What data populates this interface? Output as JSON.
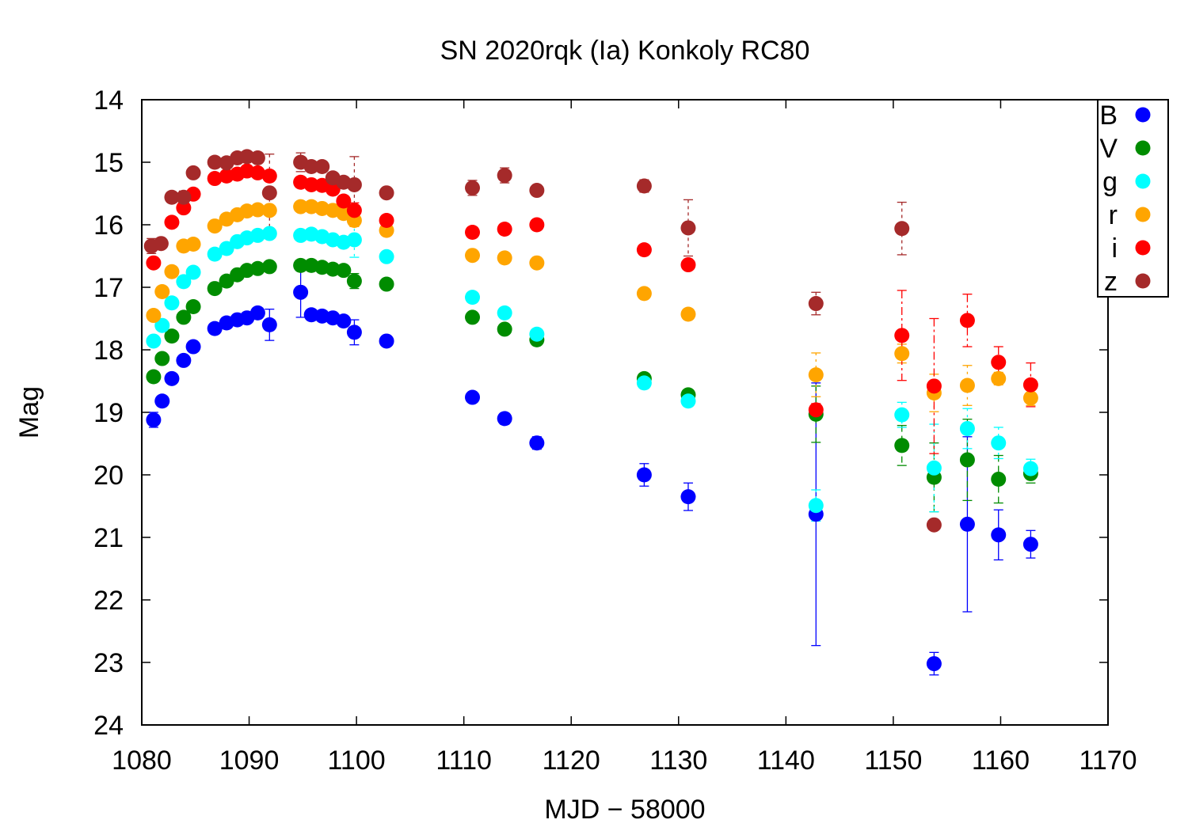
{
  "chart_data": {
    "type": "scatter",
    "title": "SN 2020rqk (Ia) Konkoly RC80",
    "xlabel": "MJD − 58000",
    "ylabel": "Mag",
    "xlim": [
      1080,
      1170
    ],
    "ylim": [
      14,
      24
    ],
    "y_inverted": true,
    "x_ticks": [
      1080,
      1090,
      1100,
      1110,
      1120,
      1130,
      1140,
      1150,
      1160,
      1170
    ],
    "y_ticks": [
      14,
      15,
      16,
      17,
      18,
      19,
      20,
      21,
      22,
      23,
      24
    ],
    "grid": false,
    "legend_position": "top-right",
    "series": [
      {
        "name": "B",
        "color": "#0000ff",
        "points": [
          {
            "x": 1081.1,
            "y": 19.12,
            "err": 0.12
          },
          {
            "x": 1081.9,
            "y": 18.82,
            "err": 0.05
          },
          {
            "x": 1082.8,
            "y": 18.46,
            "err": 0.05
          },
          {
            "x": 1083.9,
            "y": 18.17,
            "err": 0.05
          },
          {
            "x": 1084.8,
            "y": 17.95,
            "err": 0.05
          },
          {
            "x": 1086.8,
            "y": 17.66,
            "err": 0.05
          },
          {
            "x": 1087.9,
            "y": 17.57,
            "err": 0.05
          },
          {
            "x": 1088.9,
            "y": 17.52,
            "err": 0.05
          },
          {
            "x": 1089.8,
            "y": 17.49,
            "err": 0.05
          },
          {
            "x": 1090.8,
            "y": 17.41,
            "err": 0.05
          },
          {
            "x": 1091.9,
            "y": 17.6,
            "err": 0.25
          },
          {
            "x": 1094.8,
            "y": 17.08,
            "err": 0.4
          },
          {
            "x": 1095.8,
            "y": 17.44,
            "err": 0.05
          },
          {
            "x": 1096.8,
            "y": 17.46,
            "err": 0.05
          },
          {
            "x": 1097.8,
            "y": 17.49,
            "err": 0.05
          },
          {
            "x": 1098.8,
            "y": 17.54,
            "err": 0.05
          },
          {
            "x": 1099.8,
            "y": 17.72,
            "err": 0.2
          },
          {
            "x": 1102.8,
            "y": 17.86,
            "err": 0.05
          },
          {
            "x": 1110.8,
            "y": 18.76,
            "err": 0.07
          },
          {
            "x": 1113.8,
            "y": 19.1,
            "err": 0.09
          },
          {
            "x": 1116.8,
            "y": 19.49,
            "err": 0.1
          },
          {
            "x": 1126.8,
            "y": 20.0,
            "err": 0.18
          },
          {
            "x": 1130.9,
            "y": 20.35,
            "err": 0.22
          },
          {
            "x": 1142.8,
            "y": 20.63,
            "err": 2.1
          },
          {
            "x": 1153.8,
            "y": 23.02,
            "err": 0.18
          },
          {
            "x": 1156.9,
            "y": 20.79,
            "err": 1.4
          },
          {
            "x": 1159.8,
            "y": 20.96,
            "err": 0.4
          },
          {
            "x": 1162.8,
            "y": 21.11,
            "err": 0.22
          }
        ]
      },
      {
        "name": "V",
        "color": "#008c00",
        "points": [
          {
            "x": 1081.1,
            "y": 18.43,
            "err": 0.05
          },
          {
            "x": 1081.9,
            "y": 18.14,
            "err": 0.05
          },
          {
            "x": 1082.8,
            "y": 17.78,
            "err": 0.05
          },
          {
            "x": 1083.9,
            "y": 17.48,
            "err": 0.05
          },
          {
            "x": 1084.8,
            "y": 17.31,
            "err": 0.05
          },
          {
            "x": 1086.8,
            "y": 17.02,
            "err": 0.05
          },
          {
            "x": 1087.9,
            "y": 16.9,
            "err": 0.05
          },
          {
            "x": 1088.9,
            "y": 16.8,
            "err": 0.05
          },
          {
            "x": 1089.8,
            "y": 16.73,
            "err": 0.05
          },
          {
            "x": 1090.8,
            "y": 16.7,
            "err": 0.05
          },
          {
            "x": 1091.9,
            "y": 16.67,
            "err": 0.05
          },
          {
            "x": 1094.8,
            "y": 16.65,
            "err": 0.05
          },
          {
            "x": 1095.8,
            "y": 16.65,
            "err": 0.05
          },
          {
            "x": 1096.8,
            "y": 16.68,
            "err": 0.05
          },
          {
            "x": 1097.8,
            "y": 16.71,
            "err": 0.05
          },
          {
            "x": 1098.8,
            "y": 16.73,
            "err": 0.05
          },
          {
            "x": 1099.8,
            "y": 16.9,
            "err": 0.12
          },
          {
            "x": 1102.8,
            "y": 16.95,
            "err": 0.05
          },
          {
            "x": 1110.8,
            "y": 17.48,
            "err": 0.05
          },
          {
            "x": 1113.8,
            "y": 17.67,
            "err": 0.05
          },
          {
            "x": 1116.8,
            "y": 17.84,
            "err": 0.05
          },
          {
            "x": 1126.8,
            "y": 18.46,
            "err": 0.05
          },
          {
            "x": 1130.9,
            "y": 18.72,
            "err": 0.05
          },
          {
            "x": 1142.8,
            "y": 19.03,
            "err": 0.45
          },
          {
            "x": 1150.8,
            "y": 19.53,
            "err": 0.32
          },
          {
            "x": 1153.8,
            "y": 20.04,
            "err": 0.55
          },
          {
            "x": 1156.9,
            "y": 19.76,
            "err": 0.65
          },
          {
            "x": 1159.8,
            "y": 20.07,
            "err": 0.38
          },
          {
            "x": 1162.8,
            "y": 19.98,
            "err": 0.15
          }
        ]
      },
      {
        "name": "g",
        "color": "#00ffff",
        "points": [
          {
            "x": 1081.1,
            "y": 17.86,
            "err": 0.05
          },
          {
            "x": 1081.9,
            "y": 17.61,
            "err": 0.05
          },
          {
            "x": 1082.8,
            "y": 17.25,
            "err": 0.05
          },
          {
            "x": 1083.9,
            "y": 16.91,
            "err": 0.05
          },
          {
            "x": 1084.8,
            "y": 16.76,
            "err": 0.05
          },
          {
            "x": 1086.8,
            "y": 16.47,
            "err": 0.05
          },
          {
            "x": 1087.9,
            "y": 16.38,
            "err": 0.05
          },
          {
            "x": 1088.9,
            "y": 16.27,
            "err": 0.05
          },
          {
            "x": 1089.8,
            "y": 16.21,
            "err": 0.05
          },
          {
            "x": 1090.8,
            "y": 16.17,
            "err": 0.05
          },
          {
            "x": 1091.9,
            "y": 16.14,
            "err": 0.05
          },
          {
            "x": 1094.8,
            "y": 16.17,
            "err": 0.05
          },
          {
            "x": 1095.8,
            "y": 16.15,
            "err": 0.05
          },
          {
            "x": 1096.8,
            "y": 16.19,
            "err": 0.05
          },
          {
            "x": 1097.8,
            "y": 16.24,
            "err": 0.05
          },
          {
            "x": 1098.8,
            "y": 16.28,
            "err": 0.05
          },
          {
            "x": 1099.8,
            "y": 16.24,
            "err": 0.28
          },
          {
            "x": 1102.8,
            "y": 16.51,
            "err": 0.05
          },
          {
            "x": 1110.8,
            "y": 17.16,
            "err": 0.05
          },
          {
            "x": 1113.8,
            "y": 17.41,
            "err": 0.05
          },
          {
            "x": 1116.8,
            "y": 17.75,
            "err": 0.05
          },
          {
            "x": 1126.8,
            "y": 18.53,
            "err": 0.05
          },
          {
            "x": 1130.9,
            "y": 18.82,
            "err": 0.05
          },
          {
            "x": 1142.8,
            "y": 20.49,
            "err": 0.25
          },
          {
            "x": 1150.8,
            "y": 19.04,
            "err": 0.2
          },
          {
            "x": 1153.8,
            "y": 19.89,
            "err": 0.7
          },
          {
            "x": 1156.9,
            "y": 19.26,
            "err": 0.32
          },
          {
            "x": 1159.8,
            "y": 19.49,
            "err": 0.25
          },
          {
            "x": 1162.8,
            "y": 19.9,
            "err": 0.15
          }
        ]
      },
      {
        "name": "r",
        "color": "#ffa500",
        "points": [
          {
            "x": 1081.1,
            "y": 17.45,
            "err": 0.05
          },
          {
            "x": 1081.9,
            "y": 17.07,
            "err": 0.05
          },
          {
            "x": 1082.8,
            "y": 16.75,
            "err": 0.05
          },
          {
            "x": 1083.9,
            "y": 16.34,
            "err": 0.05
          },
          {
            "x": 1084.8,
            "y": 16.31,
            "err": 0.05
          },
          {
            "x": 1086.8,
            "y": 16.02,
            "err": 0.05
          },
          {
            "x": 1087.9,
            "y": 15.91,
            "err": 0.05
          },
          {
            "x": 1088.9,
            "y": 15.84,
            "err": 0.05
          },
          {
            "x": 1089.8,
            "y": 15.78,
            "err": 0.05
          },
          {
            "x": 1090.8,
            "y": 15.76,
            "err": 0.05
          },
          {
            "x": 1091.9,
            "y": 15.77,
            "err": 0.05
          },
          {
            "x": 1094.8,
            "y": 15.71,
            "err": 0.05
          },
          {
            "x": 1095.8,
            "y": 15.71,
            "err": 0.05
          },
          {
            "x": 1096.8,
            "y": 15.74,
            "err": 0.05
          },
          {
            "x": 1097.8,
            "y": 15.77,
            "err": 0.05
          },
          {
            "x": 1098.8,
            "y": 15.82,
            "err": 0.05
          },
          {
            "x": 1099.8,
            "y": 15.93,
            "err": 0.1
          },
          {
            "x": 1102.8,
            "y": 16.09,
            "err": 0.05
          },
          {
            "x": 1110.8,
            "y": 16.49,
            "err": 0.05
          },
          {
            "x": 1113.8,
            "y": 16.53,
            "err": 0.05
          },
          {
            "x": 1116.8,
            "y": 16.61,
            "err": 0.05
          },
          {
            "x": 1126.8,
            "y": 17.1,
            "err": 0.05
          },
          {
            "x": 1130.9,
            "y": 17.43,
            "err": 0.05
          },
          {
            "x": 1142.8,
            "y": 18.4,
            "err": 0.35
          },
          {
            "x": 1150.8,
            "y": 18.06,
            "err": 0.15
          },
          {
            "x": 1153.8,
            "y": 18.69,
            "err": 0.3
          },
          {
            "x": 1156.9,
            "y": 18.57,
            "err": 0.32
          },
          {
            "x": 1159.8,
            "y": 18.46,
            "err": 0.1
          },
          {
            "x": 1162.8,
            "y": 18.77,
            "err": 0.12
          }
        ]
      },
      {
        "name": "i",
        "color": "#ff0000",
        "points": [
          {
            "x": 1081.1,
            "y": 16.61,
            "err": 0.05
          },
          {
            "x": 1082.8,
            "y": 15.96,
            "err": 0.05
          },
          {
            "x": 1083.9,
            "y": 15.73,
            "err": 0.05
          },
          {
            "x": 1084.8,
            "y": 15.51,
            "err": 0.05
          },
          {
            "x": 1086.8,
            "y": 15.26,
            "err": 0.05
          },
          {
            "x": 1087.9,
            "y": 15.22,
            "err": 0.05
          },
          {
            "x": 1088.9,
            "y": 15.19,
            "err": 0.05
          },
          {
            "x": 1089.8,
            "y": 15.14,
            "err": 0.05
          },
          {
            "x": 1090.8,
            "y": 15.17,
            "err": 0.05
          },
          {
            "x": 1091.9,
            "y": 15.22,
            "err": 0.05
          },
          {
            "x": 1094.8,
            "y": 15.32,
            "err": 0.05
          },
          {
            "x": 1095.8,
            "y": 15.36,
            "err": 0.05
          },
          {
            "x": 1096.8,
            "y": 15.37,
            "err": 0.05
          },
          {
            "x": 1097.8,
            "y": 15.43,
            "err": 0.05
          },
          {
            "x": 1098.8,
            "y": 15.62,
            "err": 0.05
          },
          {
            "x": 1099.8,
            "y": 15.77,
            "err": 0.12
          },
          {
            "x": 1102.8,
            "y": 15.93,
            "err": 0.05
          },
          {
            "x": 1110.8,
            "y": 16.12,
            "err": 0.05
          },
          {
            "x": 1113.8,
            "y": 16.07,
            "err": 0.05
          },
          {
            "x": 1116.8,
            "y": 16.0,
            "err": 0.05
          },
          {
            "x": 1126.8,
            "y": 16.4,
            "err": 0.05
          },
          {
            "x": 1130.9,
            "y": 16.64,
            "err": 0.05
          },
          {
            "x": 1142.8,
            "y": 18.96,
            "err": 0.1
          },
          {
            "x": 1150.8,
            "y": 17.77,
            "err": 0.72
          },
          {
            "x": 1153.8,
            "y": 18.58,
            "err": 1.08
          },
          {
            "x": 1156.9,
            "y": 17.53,
            "err": 0.42
          },
          {
            "x": 1159.8,
            "y": 18.2,
            "err": 0.25
          },
          {
            "x": 1162.8,
            "y": 18.56,
            "err": 0.35
          }
        ]
      },
      {
        "name": "z",
        "color": "#a52a2a",
        "points": [
          {
            "x": 1080.9,
            "y": 16.34,
            "err": 0.12
          },
          {
            "x": 1081.8,
            "y": 16.3,
            "err": 0.05
          },
          {
            "x": 1082.8,
            "y": 15.56,
            "err": 0.05
          },
          {
            "x": 1083.9,
            "y": 15.56,
            "err": 0.1
          },
          {
            "x": 1084.8,
            "y": 15.17,
            "err": 0.05
          },
          {
            "x": 1086.8,
            "y": 15.0,
            "err": 0.05
          },
          {
            "x": 1087.9,
            "y": 15.01,
            "err": 0.05
          },
          {
            "x": 1088.9,
            "y": 14.93,
            "err": 0.05
          },
          {
            "x": 1089.8,
            "y": 14.91,
            "err": 0.05
          },
          {
            "x": 1090.8,
            "y": 14.93,
            "err": 0.05
          },
          {
            "x": 1091.9,
            "y": 15.49,
            "err": 0.62
          },
          {
            "x": 1094.8,
            "y": 15.0,
            "err": 0.15
          },
          {
            "x": 1095.8,
            "y": 15.07,
            "err": 0.05
          },
          {
            "x": 1096.8,
            "y": 15.07,
            "err": 0.05
          },
          {
            "x": 1097.8,
            "y": 15.25,
            "err": 0.05
          },
          {
            "x": 1098.8,
            "y": 15.32,
            "err": 0.05
          },
          {
            "x": 1099.8,
            "y": 15.36,
            "err": 0.45
          },
          {
            "x": 1102.8,
            "y": 15.49,
            "err": 0.05
          },
          {
            "x": 1110.8,
            "y": 15.41,
            "err": 0.12
          },
          {
            "x": 1113.8,
            "y": 15.21,
            "err": 0.12
          },
          {
            "x": 1116.8,
            "y": 15.45,
            "err": 0.05
          },
          {
            "x": 1126.8,
            "y": 15.38,
            "err": 0.1
          },
          {
            "x": 1130.9,
            "y": 16.05,
            "err": 0.45
          },
          {
            "x": 1142.8,
            "y": 17.26,
            "err": 0.18
          },
          {
            "x": 1150.8,
            "y": 16.06,
            "err": 0.42
          },
          {
            "x": 1153.8,
            "y": 20.8,
            "err": 0.05
          }
        ]
      }
    ]
  }
}
